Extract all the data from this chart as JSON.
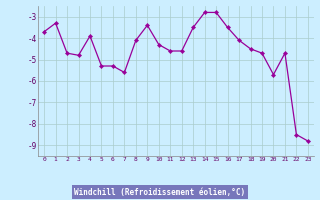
{
  "x": [
    0,
    1,
    2,
    3,
    4,
    5,
    6,
    7,
    8,
    9,
    10,
    11,
    12,
    13,
    14,
    15,
    16,
    17,
    18,
    19,
    20,
    21,
    22,
    23
  ],
  "y": [
    -3.7,
    -3.3,
    -4.7,
    -4.8,
    -3.9,
    -5.3,
    -5.3,
    -5.6,
    -4.1,
    -3.4,
    -4.3,
    -4.6,
    -4.6,
    -3.5,
    -2.8,
    -2.8,
    -3.5,
    -4.1,
    -4.5,
    -4.7,
    -5.7,
    -4.7,
    -8.5,
    -8.8
  ],
  "xlabel": "Windchill (Refroidissement éolien,°C)",
  "ylim": [
    -9.5,
    -2.5
  ],
  "yticks": [
    -3,
    -4,
    -5,
    -6,
    -7,
    -8,
    -9
  ],
  "xticks": [
    0,
    1,
    2,
    3,
    4,
    5,
    6,
    7,
    8,
    9,
    10,
    11,
    12,
    13,
    14,
    15,
    16,
    17,
    18,
    19,
    20,
    21,
    22,
    23
  ],
  "line_color": "#990099",
  "marker_color": "#990099",
  "bg_color": "#cceeff",
  "grid_color": "#aacccc",
  "xlabel_bg": "#7777bb",
  "xlabel_color": "#ffffff",
  "spine_color": "#888888"
}
